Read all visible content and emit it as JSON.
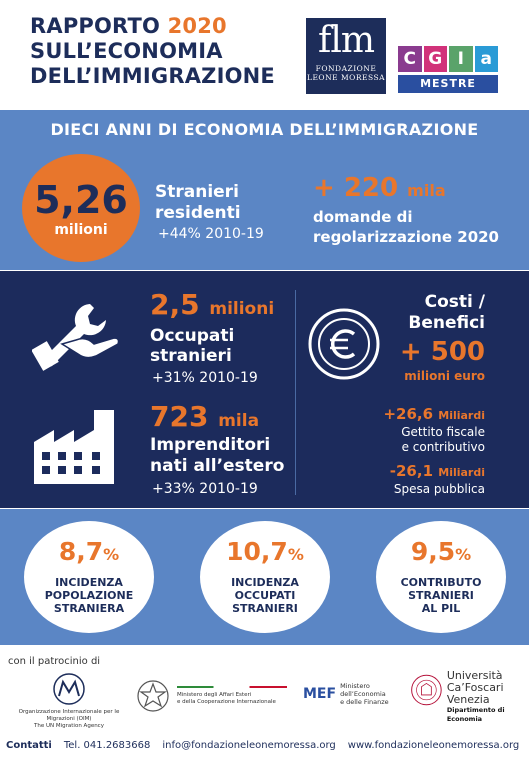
{
  "header": {
    "title_line1_a": "RAPPORTO ",
    "title_line1_b": "2020",
    "title_line2": "SULL’ECONOMIA",
    "title_line3": "DELL’IMMIGRAZIONE",
    "flm_logo": {
      "letters": "flm",
      "line1": "FONDAZIONE",
      "line2": "LEONE MORESSA"
    },
    "cgia_logo": {
      "letters": [
        "C",
        "G",
        "I",
        "a"
      ],
      "colors": [
        "#8a3b8f",
        "#d1327a",
        "#5aa36a",
        "#2a9bd6"
      ],
      "bottom": "MESTRE"
    }
  },
  "section1": {
    "title": "DIECI ANNI DI ECONOMIA DELL’IMMIGRAZIONE",
    "residents": {
      "value": "5,26",
      "unit": "milioni",
      "label_line1": "Stranieri",
      "label_line2": "residenti",
      "growth": "+44% 2010-19"
    },
    "applications": {
      "value": "+ 220",
      "unit": "mila",
      "label_line1": "domande di",
      "label_line2": "regolarizzazione 2020"
    }
  },
  "section2": {
    "employed": {
      "value": "2,5",
      "unit": "milioni",
      "label_line1": "Occupati",
      "label_line2": "stranieri",
      "growth": "+31% 2010-19"
    },
    "entrepreneurs": {
      "value": "723",
      "unit": "mila",
      "label_line1": "Imprenditori",
      "label_line2": "nati all’estero",
      "growth": "+33% 2010-19"
    },
    "costs_benefits": {
      "title_line1": "Costi /",
      "title_line2": "Benefici",
      "value": "+ 500",
      "unit": "milioni euro",
      "fiscal_value": "+26,6",
      "fiscal_unit": "Miliardi",
      "fiscal_label_line1": "Gettito fiscale",
      "fiscal_label_line2": "e contributivo",
      "spending_value": "-26,1",
      "spending_unit": "Miliardi",
      "spending_label": "Spesa pubblica"
    }
  },
  "section3": {
    "items": [
      {
        "value": "8,7",
        "unit": "%",
        "line1": "INCIDENZA",
        "line2": "POPOLAZIONE",
        "line3": "STRANIERA"
      },
      {
        "value": "10,7",
        "unit": "%",
        "line1": "INCIDENZA",
        "line2": "OCCUPATI",
        "line3": "STRANIERI"
      },
      {
        "value": "9,5",
        "unit": "%",
        "line1": "CONTRIBUTO",
        "line2": "STRANIERI",
        "line3": "AL PIL"
      }
    ]
  },
  "footer": {
    "patrocinio": "con il patrocinio di",
    "partners": {
      "oim_line1": "Organizzazione Internazionale per le Migrazioni (OIM)",
      "oim_line2": "The UN Migration Agency",
      "maeci_line1": "Ministero degli Affari Esteri",
      "maeci_line2": "e della Cooperazione Internazionale",
      "mef_logo": "MEF",
      "mef_line1": "Ministero",
      "mef_line2": "dell’Economia",
      "mef_line3": "e delle Finanze",
      "unive_line1": "Università",
      "unive_line2": "Ca’Foscari",
      "unive_line3": "Venezia",
      "unive_line4": "Dipartimento di Economia"
    },
    "contacts_label": "Contatti",
    "phone": "Tel. 041.2683668",
    "email": "info@fondazioneleonemoressa.org",
    "website": "www.fondazioneleonemoressa.org"
  },
  "colors": {
    "navy": "#1d2d5a",
    "orange": "#e8762c",
    "light_blue": "#5b86c5",
    "dark_blue": "#1c2b5c"
  }
}
